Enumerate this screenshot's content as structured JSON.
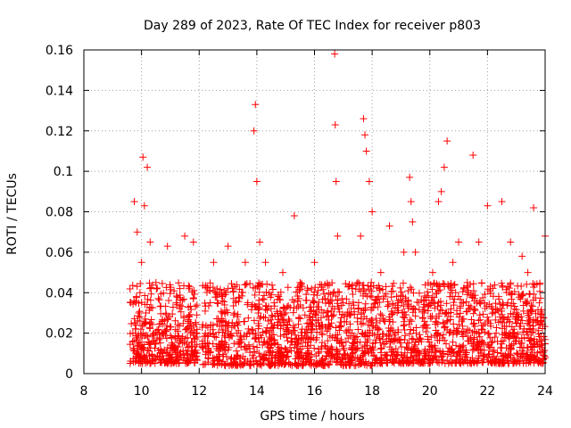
{
  "chart_data": {
    "type": "scatter",
    "title": "Day 289 of 2023, Rate Of TEC Index for receiver p803",
    "xlabel": "GPS time / hours",
    "ylabel": "ROTI / TECUs",
    "xlim": [
      8,
      24
    ],
    "ylim": [
      0,
      0.16
    ],
    "grid": true,
    "marker": "+",
    "color": "#ff0000",
    "xticks": [
      8,
      10,
      12,
      14,
      16,
      18,
      20,
      22,
      24
    ],
    "xtick_labels": [
      "8",
      "10",
      "12",
      "14",
      "16",
      "18",
      "20",
      "22",
      "24"
    ],
    "yticks": [
      0,
      0.02,
      0.04,
      0.06,
      0.08,
      0.1,
      0.12,
      0.14,
      0.16
    ],
    "ytick_labels": [
      "0",
      "0.02",
      "0.04",
      "0.06",
      "0.08",
      "0.1",
      "0.12",
      "0.14",
      "0.16"
    ],
    "series": [
      {
        "name": "ROTI",
        "x": [
          9.7,
          9.75,
          9.8,
          9.85,
          9.9,
          10.0,
          10.05,
          10.1,
          10.15,
          10.2,
          10.3,
          10.5,
          10.7,
          10.9,
          11.2,
          11.5,
          11.7,
          11.8,
          11.9,
          12.2,
          12.5,
          12.8,
          13.0,
          13.3,
          13.6,
          13.9,
          13.95,
          14.0,
          14.05,
          14.1,
          14.3,
          14.6,
          14.9,
          15.2,
          15.3,
          15.5,
          15.8,
          16.0,
          16.3,
          16.5,
          16.7,
          16.72,
          16.75,
          16.8,
          17.0,
          17.3,
          17.5,
          17.6,
          17.7,
          17.75,
          17.8,
          17.9,
          18.0,
          18.3,
          18.6,
          18.9,
          19.1,
          19.3,
          19.35,
          19.4,
          19.5,
          19.8,
          20.1,
          20.3,
          20.4,
          20.5,
          20.6,
          20.8,
          21.0,
          21.3,
          21.5,
          21.7,
          21.9,
          22.0,
          22.3,
          22.5,
          22.8,
          23.0,
          23.2,
          23.4,
          23.6,
          23.8,
          24.0
        ],
        "y": [
          0.02,
          0.085,
          0.035,
          0.07,
          0.015,
          0.055,
          0.107,
          0.083,
          0.03,
          0.102,
          0.065,
          0.045,
          0.02,
          0.063,
          0.035,
          0.068,
          0.025,
          0.065,
          0.02,
          0.015,
          0.055,
          0.03,
          0.063,
          0.02,
          0.055,
          0.12,
          0.133,
          0.095,
          0.03,
          0.065,
          0.055,
          0.035,
          0.05,
          0.02,
          0.078,
          0.045,
          0.025,
          0.055,
          0.03,
          0.035,
          0.158,
          0.123,
          0.095,
          0.068,
          0.035,
          0.02,
          0.045,
          0.068,
          0.126,
          0.118,
          0.11,
          0.095,
          0.08,
          0.05,
          0.073,
          0.035,
          0.06,
          0.097,
          0.085,
          0.075,
          0.06,
          0.03,
          0.05,
          0.085,
          0.09,
          0.102,
          0.115,
          0.055,
          0.065,
          0.045,
          0.108,
          0.065,
          0.035,
          0.083,
          0.02,
          0.085,
          0.065,
          0.025,
          0.058,
          0.05,
          0.082,
          0.035,
          0.068
        ],
        "bulk_bands": [
          {
            "x": [
              9.6,
              12.0
            ],
            "y": [
              0.005,
              0.045
            ]
          },
          {
            "x": [
              12.0,
              18.0
            ],
            "y": [
              0.004,
              0.045
            ]
          },
          {
            "x": [
              18.0,
              24.0
            ],
            "y": [
              0.005,
              0.045
            ]
          }
        ],
        "gaps": [
          [
            11.95,
            12.1
          ]
        ]
      }
    ]
  }
}
